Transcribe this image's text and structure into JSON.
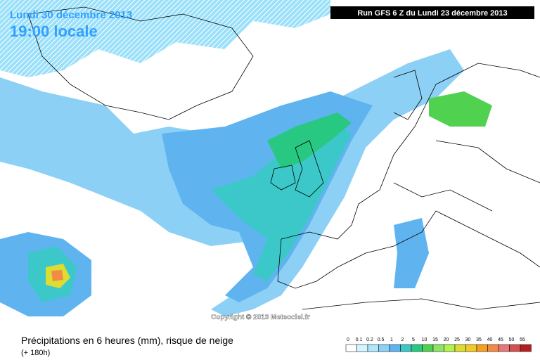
{
  "header": {
    "date": "Lundi 30 décembre 2013",
    "time": "19:00 locale",
    "run": "Run GFS 6 Z du Lundi 23 décembre 2013"
  },
  "copyright": "Copyright © 2013 Meteociel.fr",
  "footer": {
    "title": "Précipitations en 6 heures (mm), risque de neige",
    "lead": "(+ 180h)"
  },
  "legend": {
    "labels": [
      "0",
      "0.1",
      "0.2",
      "0.5",
      "1",
      "2",
      "5",
      "10",
      "15",
      "20",
      "25",
      "30",
      "35",
      "40",
      "45",
      "50",
      "55"
    ],
    "colors": [
      "#ffffff",
      "#d4f5ff",
      "#aee6fa",
      "#8cd0f5",
      "#5fb4f0",
      "#3cc8c8",
      "#28c882",
      "#50d250",
      "#8ce664",
      "#b4f050",
      "#dcdc32",
      "#f0c828",
      "#f5a01e",
      "#f08c46",
      "#e67878",
      "#d25050",
      "#b41e1e"
    ]
  }
}
